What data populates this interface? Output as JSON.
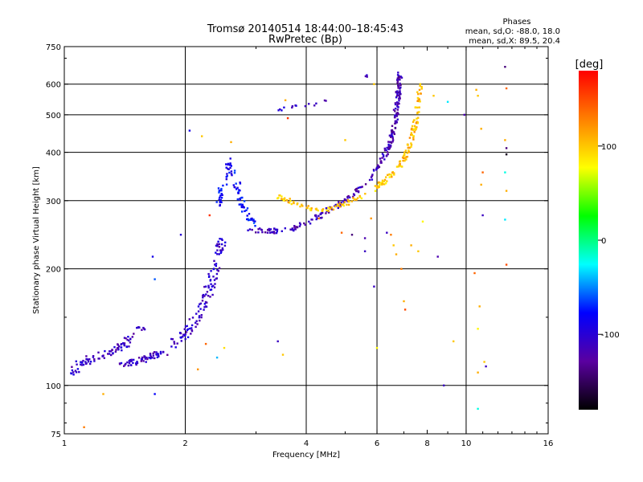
{
  "chart_data": {
    "type": "scatter",
    "title": "Tromsø 20140514 18:44:00–18:45:43",
    "subtitle": "RwPretec (Bp)",
    "xlabel": "Frequency [MHz]",
    "ylabel": "Stationary phase Virtual Height [km]",
    "x_scale": "log",
    "y_scale": "log",
    "xlim": [
      1,
      16
    ],
    "ylim": [
      75,
      750
    ],
    "x_ticks": [
      1,
      2,
      4,
      6,
      8,
      10,
      16
    ],
    "y_ticks": [
      75,
      100,
      200,
      300,
      400,
      500,
      600,
      750
    ],
    "x_grid": [
      2,
      4,
      6,
      10
    ],
    "y_grid": [
      100,
      200,
      300,
      400,
      500,
      600
    ],
    "grid": true,
    "colorbar": {
      "label": "[deg]",
      "range": [
        -180,
        180
      ],
      "ticks": [
        -100,
        0,
        100
      ],
      "colors": [
        "#000000",
        "#5a00a0",
        "#0000ff",
        "#00ffff",
        "#00ff00",
        "#ffff00",
        "#ff8000",
        "#ff0000"
      ]
    },
    "legend": {
      "title": "Phases",
      "lines": [
        "mean, sd,O: -88.0, 18.0",
        "mean, sd,X:  89.5, 20.4"
      ]
    },
    "traces": [
      {
        "phase": -110,
        "spread": 5,
        "n": 90,
        "points": [
          [
            1.03,
            105
          ],
          [
            1.1,
            115
          ],
          [
            1.2,
            118
          ],
          [
            1.3,
            122
          ],
          [
            1.42,
            128
          ],
          [
            1.52,
            138
          ],
          [
            1.58,
            142
          ]
        ]
      },
      {
        "phase": -110,
        "spread": 4,
        "n": 60,
        "points": [
          [
            1.38,
            113
          ],
          [
            1.5,
            115
          ],
          [
            1.62,
            118
          ],
          [
            1.78,
            122
          ]
        ]
      },
      {
        "phase": -105,
        "spread": 6,
        "n": 120,
        "points": [
          [
            1.88,
            128
          ],
          [
            2.0,
            135
          ],
          [
            2.15,
            150
          ],
          [
            2.28,
            175
          ],
          [
            2.38,
            200
          ],
          [
            2.46,
            240
          ]
        ]
      },
      {
        "phase": -80,
        "spread": 4,
        "n": 90,
        "points": [
          [
            2.4,
            280
          ],
          [
            2.5,
            340
          ],
          [
            2.58,
            380
          ],
          [
            2.66,
            345
          ],
          [
            2.8,
            285
          ],
          [
            3.0,
            258
          ]
        ]
      },
      {
        "phase": -115,
        "spread": 3,
        "n": 140,
        "points": [
          [
            2.85,
            252
          ],
          [
            3.2,
            250
          ],
          [
            3.6,
            252
          ],
          [
            4.0,
            262
          ],
          [
            4.6,
            285
          ],
          [
            5.2,
            308
          ],
          [
            5.8,
            345
          ],
          [
            6.3,
            395
          ]
        ]
      },
      {
        "phase": -118,
        "spread": 3,
        "n": 120,
        "points": [
          [
            6.3,
            395
          ],
          [
            6.5,
            430
          ],
          [
            6.65,
            480
          ],
          [
            6.75,
            540
          ],
          [
            6.8,
            600
          ],
          [
            6.85,
            640
          ]
        ]
      },
      {
        "phase": 100,
        "spread": 3,
        "n": 110,
        "points": [
          [
            3.4,
            310
          ],
          [
            3.8,
            292
          ],
          [
            4.4,
            282
          ],
          [
            5.0,
            295
          ],
          [
            5.6,
            310
          ],
          [
            6.2,
            335
          ],
          [
            6.7,
            360
          ]
        ]
      },
      {
        "phase": 105,
        "spread": 3,
        "n": 90,
        "points": [
          [
            6.7,
            360
          ],
          [
            7.0,
            385
          ],
          [
            7.3,
            430
          ],
          [
            7.5,
            480
          ],
          [
            7.6,
            540
          ],
          [
            7.7,
            610
          ]
        ]
      },
      {
        "phase": -110,
        "spread": 2,
        "n": 14,
        "points": [
          [
            3.4,
            515
          ],
          [
            3.7,
            525
          ],
          [
            4.1,
            530
          ],
          [
            4.5,
            545
          ]
        ]
      },
      {
        "phase": -110,
        "spread": 2,
        "n": 3,
        "points": [
          [
            5.5,
            625
          ],
          [
            5.75,
            630
          ]
        ]
      }
    ],
    "scatter": [
      {
        "x": 1.12,
        "y": 78,
        "phase": 130
      },
      {
        "x": 1.25,
        "y": 95,
        "phase": 110
      },
      {
        "x": 1.68,
        "y": 95,
        "phase": -80
      },
      {
        "x": 1.68,
        "y": 188,
        "phase": -60
      },
      {
        "x": 1.66,
        "y": 215,
        "phase": -90
      },
      {
        "x": 1.95,
        "y": 245,
        "phase": -100
      },
      {
        "x": 2.05,
        "y": 455,
        "phase": -90
      },
      {
        "x": 2.2,
        "y": 440,
        "phase": 100
      },
      {
        "x": 2.6,
        "y": 425,
        "phase": 110
      },
      {
        "x": 2.3,
        "y": 275,
        "phase": 160
      },
      {
        "x": 2.15,
        "y": 110,
        "phase": 120
      },
      {
        "x": 2.25,
        "y": 128,
        "phase": 140
      },
      {
        "x": 2.4,
        "y": 118,
        "phase": -40
      },
      {
        "x": 2.5,
        "y": 125,
        "phase": 90
      },
      {
        "x": 3.4,
        "y": 130,
        "phase": -110
      },
      {
        "x": 3.5,
        "y": 120,
        "phase": 100
      },
      {
        "x": 3.6,
        "y": 490,
        "phase": 160
      },
      {
        "x": 3.55,
        "y": 545,
        "phase": 110
      },
      {
        "x": 5.0,
        "y": 430,
        "phase": 100
      },
      {
        "x": 5.6,
        "y": 222,
        "phase": -110
      },
      {
        "x": 5.6,
        "y": 240,
        "phase": -120
      },
      {
        "x": 5.8,
        "y": 270,
        "phase": 120
      },
      {
        "x": 5.9,
        "y": 180,
        "phase": -110
      },
      {
        "x": 6.0,
        "y": 125,
        "phase": 80
      },
      {
        "x": 5.9,
        "y": 600,
        "phase": 100
      },
      {
        "x": 6.35,
        "y": 248,
        "phase": -110
      },
      {
        "x": 6.5,
        "y": 245,
        "phase": 130
      },
      {
        "x": 6.6,
        "y": 230,
        "phase": 100
      },
      {
        "x": 6.7,
        "y": 218,
        "phase": 110
      },
      {
        "x": 6.9,
        "y": 200,
        "phase": 130
      },
      {
        "x": 7.0,
        "y": 165,
        "phase": 110
      },
      {
        "x": 7.05,
        "y": 157,
        "phase": 150
      },
      {
        "x": 7.3,
        "y": 230,
        "phase": 110
      },
      {
        "x": 7.6,
        "y": 222,
        "phase": 100
      },
      {
        "x": 7.8,
        "y": 265,
        "phase": 80
      },
      {
        "x": 8.3,
        "y": 560,
        "phase": 100
      },
      {
        "x": 8.5,
        "y": 215,
        "phase": -120
      },
      {
        "x": 8.8,
        "y": 100,
        "phase": -110
      },
      {
        "x": 9.0,
        "y": 540,
        "phase": -30
      },
      {
        "x": 9.3,
        "y": 130,
        "phase": 100
      },
      {
        "x": 9.9,
        "y": 500,
        "phase": -120
      },
      {
        "x": 10.6,
        "y": 580,
        "phase": 110
      },
      {
        "x": 10.7,
        "y": 560,
        "phase": 100
      },
      {
        "x": 10.9,
        "y": 460,
        "phase": 110
      },
      {
        "x": 11.0,
        "y": 355,
        "phase": 140
      },
      {
        "x": 10.9,
        "y": 330,
        "phase": 110
      },
      {
        "x": 11.0,
        "y": 275,
        "phase": -110
      },
      {
        "x": 10.5,
        "y": 195,
        "phase": 140
      },
      {
        "x": 10.8,
        "y": 160,
        "phase": 110
      },
      {
        "x": 10.7,
        "y": 140,
        "phase": 80
      },
      {
        "x": 10.7,
        "y": 108,
        "phase": 110
      },
      {
        "x": 11.1,
        "y": 115,
        "phase": 100
      },
      {
        "x": 11.2,
        "y": 112,
        "phase": -110
      },
      {
        "x": 10.7,
        "y": 87,
        "phase": -20
      },
      {
        "x": 12.5,
        "y": 665,
        "phase": -140
      },
      {
        "x": 12.6,
        "y": 585,
        "phase": 140
      },
      {
        "x": 12.5,
        "y": 430,
        "phase": 110
      },
      {
        "x": 12.6,
        "y": 410,
        "phase": -140
      },
      {
        "x": 12.6,
        "y": 395,
        "phase": -170
      },
      {
        "x": 12.5,
        "y": 355,
        "phase": -20
      },
      {
        "x": 12.6,
        "y": 318,
        "phase": 110
      },
      {
        "x": 12.5,
        "y": 268,
        "phase": -30
      },
      {
        "x": 12.6,
        "y": 205,
        "phase": 150
      },
      {
        "x": 4.3,
        "y": 270,
        "phase": 130
      },
      {
        "x": 5.2,
        "y": 245,
        "phase": -140
      },
      {
        "x": 4.9,
        "y": 248,
        "phase": 140
      }
    ]
  }
}
